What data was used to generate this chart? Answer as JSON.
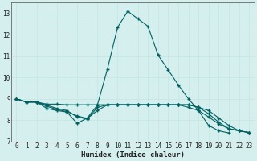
{
  "title": "",
  "xlabel": "Humidex (Indice chaleur)",
  "ylabel": "",
  "background_color": "#d5efee",
  "line_color": "#006060",
  "grid_color": "#c8e8e5",
  "ylim": [
    7,
    13.5
  ],
  "xlim": [
    -0.5,
    23.5
  ],
  "yticks": [
    7,
    8,
    9,
    10,
    11,
    12,
    13
  ],
  "xticks": [
    0,
    1,
    2,
    3,
    4,
    5,
    6,
    7,
    8,
    9,
    10,
    11,
    12,
    13,
    14,
    15,
    16,
    17,
    18,
    19,
    20,
    21,
    22,
    23
  ],
  "series": [
    {
      "x": [
        0,
        1,
        2,
        3,
        4,
        5,
        6,
        7,
        8,
        9,
        10,
        11,
        12,
        13,
        14,
        15,
        16,
        17,
        18,
        19,
        20,
        21
      ],
      "y": [
        9.0,
        8.85,
        8.85,
        8.55,
        8.45,
        8.38,
        7.85,
        8.1,
        8.7,
        10.4,
        12.35,
        13.1,
        12.75,
        12.4,
        11.05,
        10.35,
        9.65,
        9.0,
        8.45,
        7.75,
        7.5,
        7.4
      ]
    },
    {
      "x": [
        0,
        1,
        2,
        3,
        4,
        5,
        6,
        7,
        8,
        9,
        10,
        11,
        12,
        13,
        14,
        15,
        16,
        17,
        18,
        19,
        20,
        21,
        22,
        23
      ],
      "y": [
        9.0,
        8.85,
        8.85,
        8.75,
        8.75,
        8.72,
        8.72,
        8.72,
        8.72,
        8.72,
        8.72,
        8.72,
        8.72,
        8.72,
        8.72,
        8.72,
        8.72,
        8.72,
        8.6,
        8.45,
        8.1,
        7.75,
        7.5,
        7.42
      ]
    },
    {
      "x": [
        0,
        1,
        2,
        3,
        4,
        5,
        6,
        7,
        8,
        9,
        10,
        11,
        12,
        13,
        14,
        15,
        16,
        17,
        18,
        19,
        20,
        21,
        22,
        23
      ],
      "y": [
        9.0,
        8.85,
        8.85,
        8.7,
        8.55,
        8.45,
        8.15,
        8.05,
        8.6,
        8.72,
        8.72,
        8.72,
        8.72,
        8.72,
        8.72,
        8.72,
        8.72,
        8.72,
        8.6,
        8.3,
        7.9,
        7.6,
        7.5,
        7.42
      ]
    },
    {
      "x": [
        0,
        1,
        2,
        3,
        4,
        5,
        6,
        7,
        8,
        9,
        10,
        11,
        12,
        13,
        14,
        15,
        16,
        17,
        18,
        19,
        20,
        21,
        22,
        23
      ],
      "y": [
        9.0,
        8.85,
        8.85,
        8.65,
        8.5,
        8.4,
        8.2,
        8.08,
        8.45,
        8.72,
        8.72,
        8.72,
        8.72,
        8.72,
        8.72,
        8.72,
        8.72,
        8.6,
        8.45,
        8.15,
        7.82,
        7.6,
        7.5,
        7.42
      ]
    }
  ]
}
